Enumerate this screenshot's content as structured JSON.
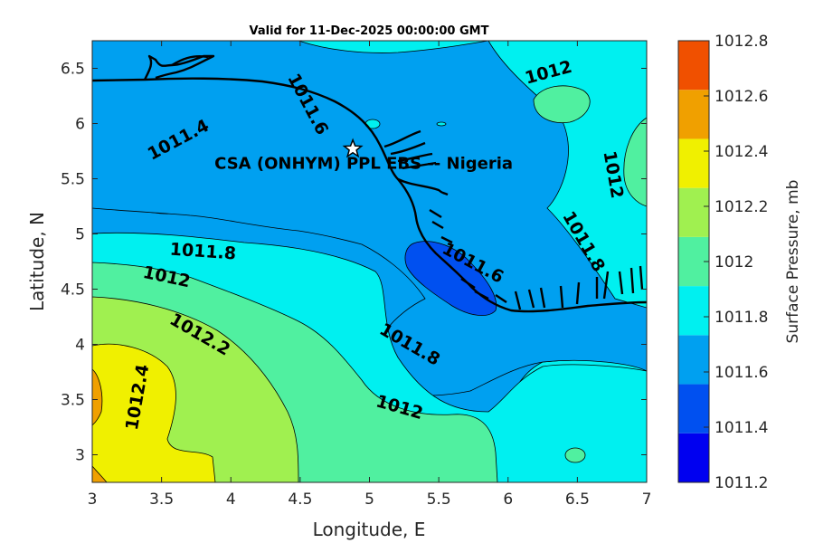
{
  "title": "Valid for 11-Dec-2025 00:00:00 GMT",
  "x_axis": {
    "label": "Longitude, E",
    "ticks": [
      "3",
      "3.5",
      "4",
      "4.5",
      "5",
      "5.5",
      "6",
      "6.5",
      "7"
    ]
  },
  "y_axis": {
    "label": "Latitude, N",
    "ticks": [
      "3",
      "3.5",
      "4",
      "4.5",
      "5",
      "5.5",
      "6",
      "6.5"
    ]
  },
  "site": {
    "label": "CSA (ONHYM) PPL EBS -- Nigeria",
    "lon": 4.88,
    "lat": 5.77
  },
  "colorbar": {
    "label": "Surface Pressure, mb",
    "ticks": [
      "1012.8",
      "1012.6",
      "1012.4",
      "1012.2",
      "1012",
      "1011.8",
      "1011.6",
      "1011.4",
      "1011.2"
    ],
    "colors": [
      "#0000f0",
      "#0050f0",
      "#00a0f0",
      "#00f0f0",
      "#50f0a0",
      "#a0f050",
      "#f0f000",
      "#f0a000",
      "#f05000"
    ]
  },
  "contour_labels": {
    "l1": "1011.4",
    "l2": "1011.6",
    "l3": "1012",
    "l4": "1012",
    "l5": "1011.8",
    "l6": "1012",
    "l7": "1011.6",
    "l8": "1011.8",
    "l9": "1012.2",
    "l10": "1011.8",
    "l11": "1012.4",
    "l12": "1012"
  },
  "chart_data": {
    "type": "heatmap",
    "title": "Valid for 11-Dec-2025 00:00:00 GMT",
    "xlabel": "Longitude, E",
    "ylabel": "Latitude, N",
    "xlim": [
      3,
      7
    ],
    "ylim": [
      2.75,
      6.75
    ],
    "colorbar_label": "Surface Pressure, mb",
    "colorbar_range": [
      1011.2,
      1012.8
    ],
    "contour_levels": [
      1011.4,
      1011.6,
      1011.8,
      1012,
      1012.2,
      1012.4
    ],
    "marker": {
      "label": "CSA (ONHYM) PPL EBS -- Nigeria",
      "lon": 4.88,
      "lat": 5.77
    }
  }
}
